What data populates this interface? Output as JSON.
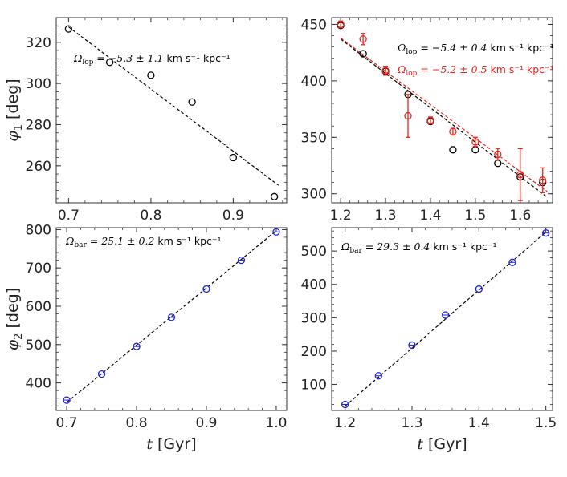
{
  "chart_data": [
    {
      "id": "p1",
      "type": "scatter",
      "xlim": [
        0.685,
        0.965
      ],
      "ylim": [
        242,
        332
      ],
      "xticks": [
        0.7,
        0.8,
        0.9
      ],
      "yticks": [
        260,
        280,
        300,
        320
      ],
      "xtick_labels": [
        "0.7",
        "0.8",
        "0.9"
      ],
      "ytick_labels": [
        "260",
        "280",
        "300",
        "320"
      ],
      "ylabel": "[deg]",
      "ylabel_symbol": "φ",
      "ylabel_sub": "1",
      "xlabel": "",
      "series": [
        {
          "name": "data",
          "color": "#000000",
          "marker": "circle",
          "x": [
            0.7,
            0.75,
            0.8,
            0.85,
            0.9,
            0.95
          ],
          "y": [
            326.5,
            310.3,
            304.0,
            291.0,
            264.0,
            245.0
          ]
        }
      ],
      "fits": [
        {
          "color": "#000000",
          "x": [
            0.7,
            0.955
          ],
          "y": [
            327.5,
            250.5
          ]
        }
      ],
      "annotations": [
        {
          "color": "#000000",
          "sym": "Ω",
          "sub": "lop",
          "value": " = −5.3 ± 1.1 ",
          "unit": "km s⁻¹ kpc⁻¹"
        }
      ]
    },
    {
      "id": "p2",
      "type": "scatter",
      "xlim": [
        1.18,
        1.672
      ],
      "ylim": [
        292,
        456
      ],
      "xticks": [
        1.2,
        1.3,
        1.4,
        1.5,
        1.6
      ],
      "yticks": [
        300,
        350,
        400,
        450
      ],
      "xtick_labels": [
        "1.2",
        "1.3",
        "1.4",
        "1.5",
        "1.6"
      ],
      "ytick_labels": [
        "300",
        "350",
        "400",
        "450"
      ],
      "ylabel": "",
      "xlabel": "",
      "series": [
        {
          "name": "black",
          "color": "#000000",
          "marker": "circle",
          "x": [
            1.2,
            1.25,
            1.3,
            1.35,
            1.4,
            1.45,
            1.5,
            1.55,
            1.6,
            1.65
          ],
          "y": [
            449.0,
            424.0,
            408.5,
            388.0,
            364.0,
            339.0,
            339.0,
            327.0,
            315.0,
            310.0
          ]
        },
        {
          "name": "red",
          "color": "#e8241c",
          "marker": "circle",
          "x": [
            1.2,
            1.25,
            1.3,
            1.35,
            1.4,
            1.45,
            1.5,
            1.55,
            1.6,
            1.65
          ],
          "y": [
            450.0,
            437.0,
            409.0,
            369.0,
            365.0,
            355.0,
            346.0,
            335.0,
            317.0,
            312.0
          ],
          "yerr": [
            3,
            5,
            4,
            19,
            3,
            3,
            4,
            5,
            23,
            11
          ]
        }
      ],
      "fits": [
        {
          "color": "#000000",
          "x": [
            1.2,
            1.66
          ],
          "y": [
            437.0,
            297.0
          ]
        },
        {
          "color": "#e8241c",
          "x": [
            1.2,
            1.66
          ],
          "y": [
            438.0,
            302.0
          ]
        }
      ],
      "annotations": [
        {
          "color": "#000000",
          "sym": "Ω",
          "sub": "lop",
          "value": " = −5.4 ± 0.4 ",
          "unit": "km s⁻¹ kpc⁻¹"
        },
        {
          "color": "#e8241c",
          "sym": "Ω",
          "sub": "lop",
          "value": " = −5.2 ± 0.5 ",
          "unit": "km s⁻¹ kpc⁻¹"
        }
      ]
    },
    {
      "id": "p3",
      "type": "scatter",
      "xlim": [
        0.685,
        1.015
      ],
      "ylim": [
        328,
        805
      ],
      "xticks": [
        0.7,
        0.8,
        0.9,
        1.0
      ],
      "yticks": [
        400,
        500,
        600,
        700,
        800
      ],
      "xtick_labels": [
        "0.7",
        "0.8",
        "0.9",
        "1.0"
      ],
      "ytick_labels": [
        "400",
        "500",
        "600",
        "700",
        "800"
      ],
      "ylabel": "[deg]",
      "ylabel_symbol": "φ",
      "ylabel_sub": "2",
      "xlabel": "[Gyr]",
      "xlabel_symbol": "t",
      "series": [
        {
          "name": "data",
          "color": "#1f1fd6",
          "marker": "circle-plus",
          "x": [
            0.7,
            0.75,
            0.8,
            0.85,
            0.9,
            0.95,
            1.0
          ],
          "y": [
            355.0,
            423.0,
            495.0,
            571.0,
            645.0,
            720.0,
            794.0
          ]
        }
      ],
      "fits": [
        {
          "color": "#000000",
          "x": [
            0.7,
            1.0
          ],
          "y": [
            349.0,
            797.0
          ]
        }
      ],
      "annotations": [
        {
          "color": "#000000",
          "sym": "Ω",
          "sub": "bar",
          "value": " = 25.1 ± 0.2 ",
          "unit": "km s⁻¹ kpc⁻¹"
        }
      ]
    },
    {
      "id": "p4",
      "type": "scatter",
      "xlim": [
        1.18,
        1.51
      ],
      "ylim": [
        22,
        570
      ],
      "xticks": [
        1.2,
        1.3,
        1.4,
        1.5
      ],
      "yticks": [
        100,
        200,
        300,
        400,
        500
      ],
      "xtick_labels": [
        "1.2",
        "1.3",
        "1.4",
        "1.5"
      ],
      "ytick_labels": [
        "100",
        "200",
        "300",
        "400",
        "500"
      ],
      "ylabel": "",
      "xlabel": "[Gyr]",
      "xlabel_symbol": "t",
      "series": [
        {
          "name": "data",
          "color": "#1f1fd6",
          "marker": "circle-plus",
          "x": [
            1.2,
            1.25,
            1.3,
            1.35,
            1.4,
            1.45,
            1.5
          ],
          "y": [
            40.0,
            126.0,
            218.0,
            308.0,
            386.0,
            466.0,
            554.0
          ]
        }
      ],
      "fits": [
        {
          "color": "#000000",
          "x": [
            1.2,
            1.5
          ],
          "y": [
            35.0,
            557.0
          ]
        }
      ],
      "annotations": [
        {
          "color": "#000000",
          "sym": "Ω",
          "sub": "bar",
          "value": " = 29.3 ± 0.4 ",
          "unit": "km s⁻¹ kpc⁻¹"
        }
      ]
    }
  ]
}
